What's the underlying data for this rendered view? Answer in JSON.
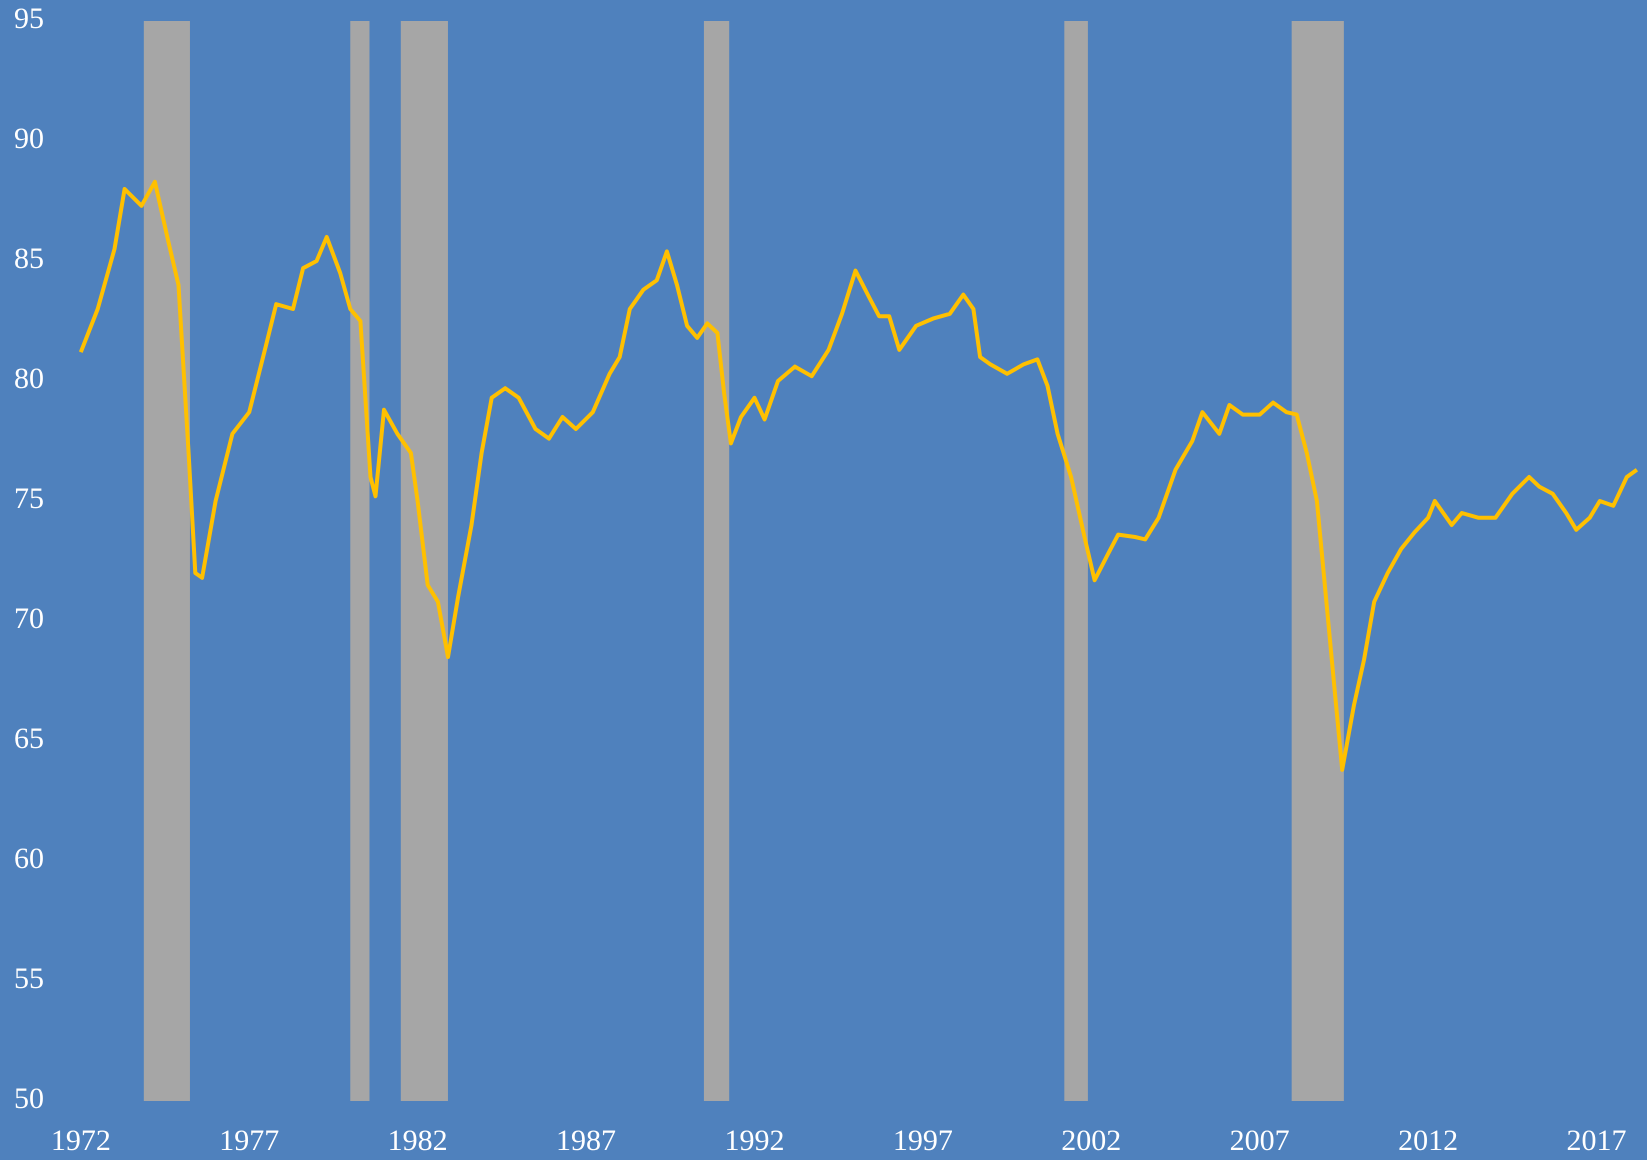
{
  "chart_data": {
    "type": "line",
    "x": [
      1972.0,
      1972.5,
      1973.0,
      1973.3,
      1973.8,
      1974.2,
      1974.6,
      1974.9,
      1975.2,
      1975.4,
      1975.6,
      1976.0,
      1976.5,
      1977.0,
      1977.5,
      1977.8,
      1978.3,
      1978.6,
      1979.0,
      1979.3,
      1979.7,
      1980.0,
      1980.3,
      1980.6,
      1980.75,
      1981.0,
      1981.4,
      1981.8,
      1982.0,
      1982.3,
      1982.6,
      1982.9,
      1983.2,
      1983.6,
      1983.9,
      1984.2,
      1984.6,
      1985.0,
      1985.5,
      1985.9,
      1986.3,
      1986.7,
      1987.2,
      1987.7,
      1988.0,
      1988.3,
      1988.7,
      1989.1,
      1989.4,
      1989.7,
      1990.0,
      1990.3,
      1990.6,
      1990.9,
      1991.1,
      1991.3,
      1991.6,
      1992.0,
      1992.3,
      1992.7,
      1993.2,
      1993.7,
      1994.2,
      1994.6,
      1995.0,
      1995.4,
      1995.7,
      1996.0,
      1996.3,
      1996.8,
      1997.3,
      1997.8,
      1998.2,
      1998.5,
      1998.7,
      1999.0,
      1999.5,
      2000.0,
      2000.4,
      2000.7,
      2001.0,
      2001.4,
      2001.8,
      2002.1,
      2002.5,
      2002.8,
      2003.3,
      2003.6,
      2004.0,
      2004.5,
      2005.0,
      2005.3,
      2005.8,
      2006.1,
      2006.5,
      2007.0,
      2007.4,
      2007.8,
      2008.1,
      2008.4,
      2008.7,
      2008.9,
      2009.2,
      2009.45,
      2009.8,
      2010.1,
      2010.4,
      2010.8,
      2011.2,
      2011.6,
      2012.0,
      2012.2,
      2012.7,
      2013.0,
      2013.5,
      2014.0,
      2014.5,
      2015.0,
      2015.3,
      2015.7,
      2016.1,
      2016.4,
      2016.8,
      2017.1,
      2017.5,
      2017.9,
      2018.2
    ],
    "series": [
      {
        "color": "#ffc000",
        "values": [
          81.2,
          83,
          85.5,
          88,
          87.3,
          88.3,
          85.8,
          84,
          77,
          72,
          71.8,
          75,
          77.8,
          78.7,
          81.5,
          83.2,
          83,
          84.7,
          85,
          86,
          84.5,
          83,
          82.5,
          76,
          75.2,
          78.8,
          77.8,
          77,
          75,
          71.5,
          70.8,
          68.5,
          71,
          74,
          77,
          79.3,
          79.7,
          79.3,
          78,
          77.6,
          78.5,
          78,
          78.7,
          80.3,
          81,
          83,
          83.8,
          84.2,
          85.4,
          84,
          82.3,
          81.8,
          82.4,
          82,
          79.5,
          77.4,
          78.5,
          79.3,
          78.4,
          80,
          80.6,
          80.2,
          81.3,
          82.8,
          84.6,
          83.5,
          82.7,
          82.7,
          81.3,
          82.3,
          82.6,
          82.8,
          83.6,
          83,
          81,
          80.7,
          80.3,
          80.7,
          80.9,
          79.8,
          77.8,
          76,
          73.5,
          71.7,
          72.8,
          73.6,
          73.5,
          73.4,
          74.3,
          76.3,
          77.5,
          78.7,
          77.8,
          79,
          78.6,
          78.6,
          79.1,
          78.7,
          78.6,
          77,
          75,
          72,
          67.5,
          63.8,
          66.5,
          68.4,
          70.8,
          72,
          73,
          73.7,
          74.3,
          75,
          74,
          74.5,
          74.3,
          74.3,
          75.3,
          76,
          75.6,
          75.3,
          74.5,
          73.8,
          74.3,
          75,
          74.8,
          76,
          76.3
        ]
      }
    ],
    "recessions": [
      [
        1973.87,
        1975.24
      ],
      [
        1980.0,
        1980.57
      ],
      [
        1981.5,
        1982.9
      ],
      [
        1990.5,
        1991.25
      ],
      [
        2001.2,
        2001.9
      ],
      [
        2007.95,
        2009.5
      ]
    ],
    "recession_color": "#a6a6a6",
    "background": "#4f81bd",
    "xlim": [
      1969.6,
      2018.5
    ],
    "xticks": [
      1972,
      1977,
      1982,
      1987,
      1992,
      1997,
      2002,
      2007,
      2012,
      2017
    ],
    "ylim": [
      50,
      95
    ],
    "yticks": [
      50,
      55,
      60,
      65,
      70,
      75,
      80,
      85,
      90,
      95
    ]
  }
}
